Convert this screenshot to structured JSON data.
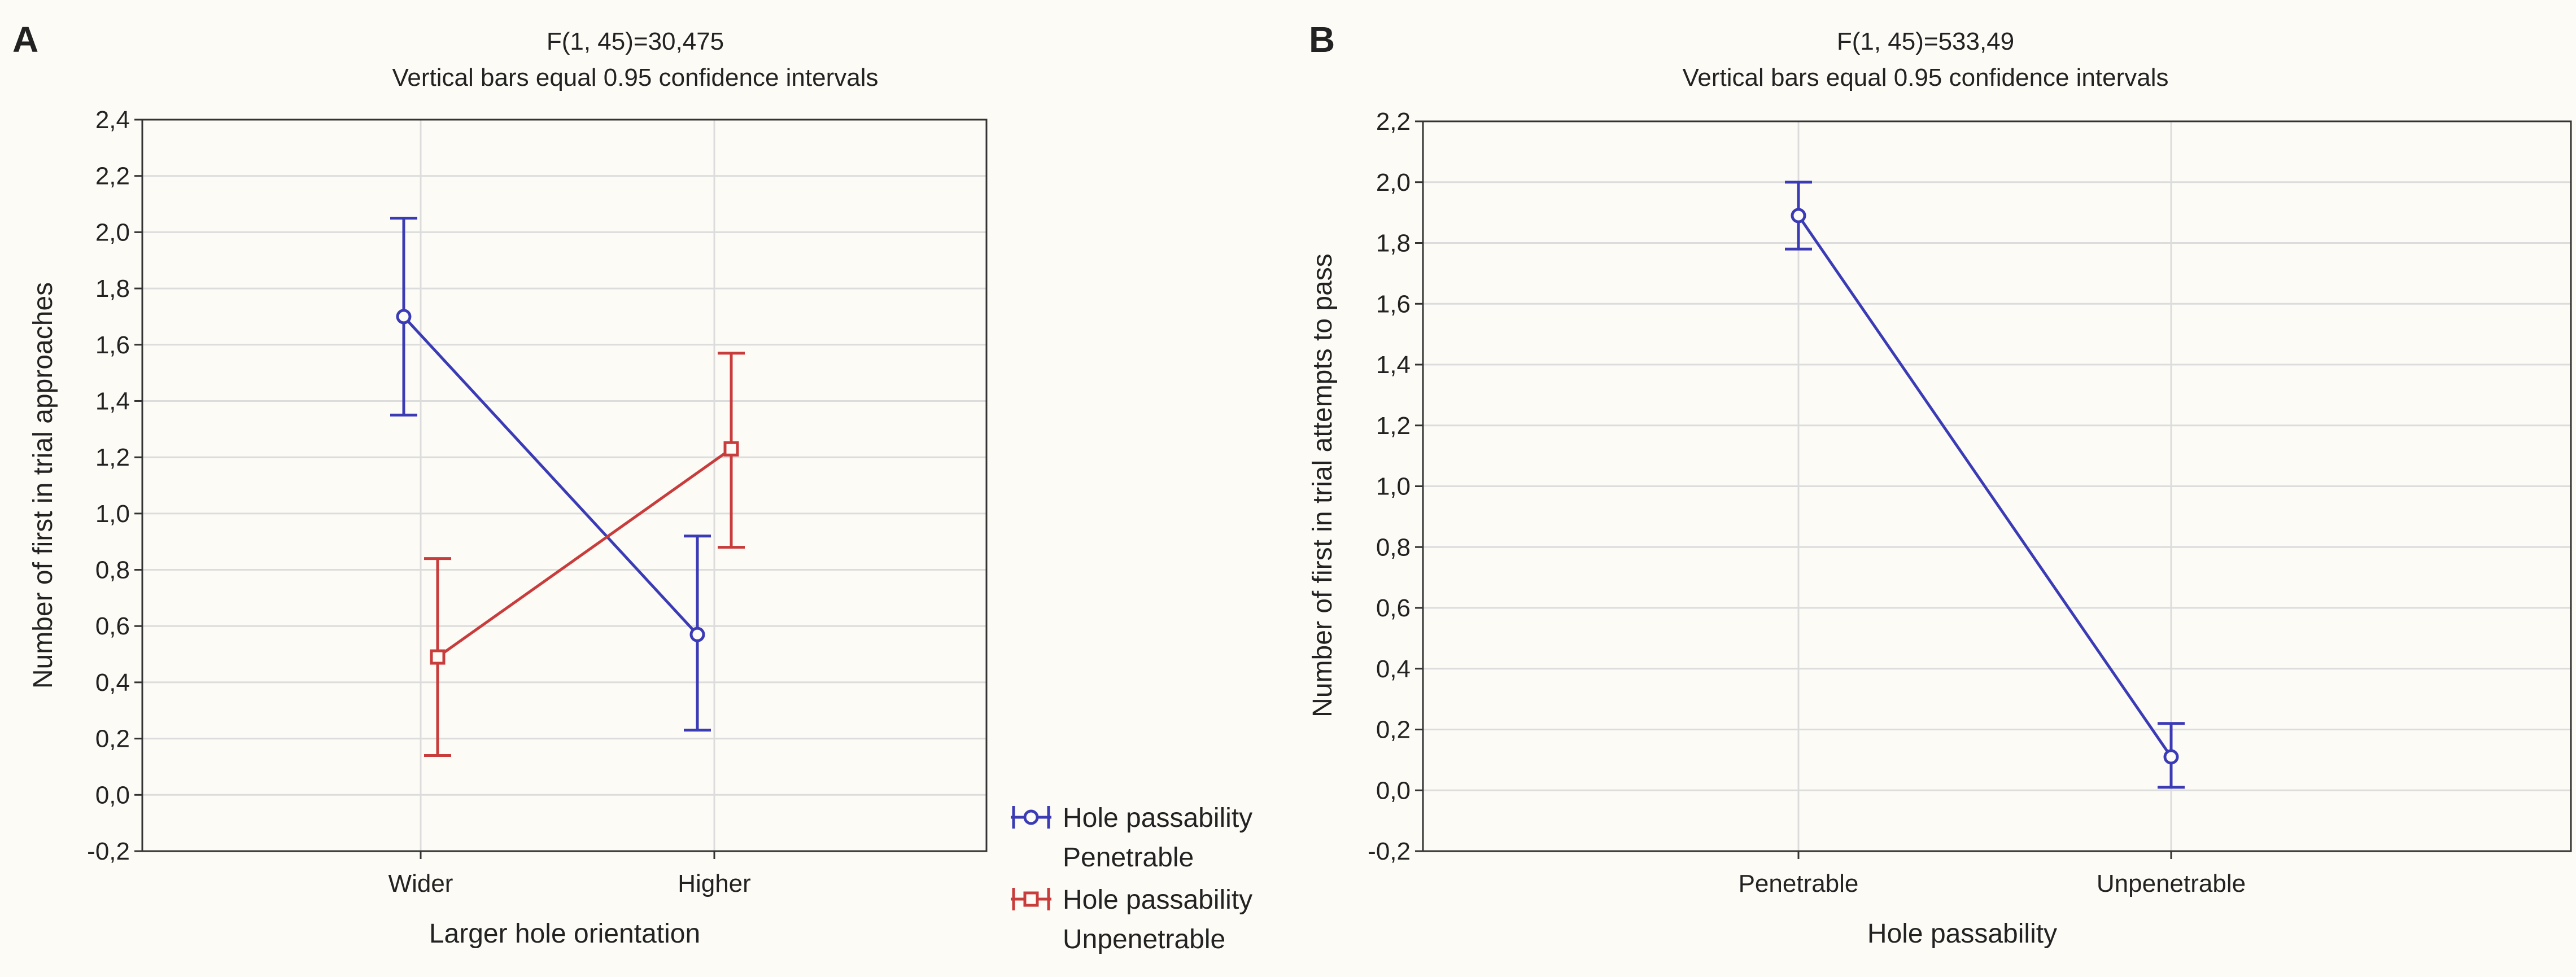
{
  "chart_data": [
    {
      "panel_label": "A",
      "type": "line",
      "title": "F(1, 45)=30,475",
      "subtitle": "Vertical bars equal 0.95 confidence intervals",
      "xlabel": "Larger hole orientation",
      "ylabel": "Number of first in trial approaches",
      "categories": [
        "Wider",
        "Higher"
      ],
      "ylim": [
        -0.2,
        2.4
      ],
      "yticks": [
        -0.2,
        0.0,
        0.2,
        0.4,
        0.6,
        0.8,
        1.0,
        1.2,
        1.4,
        1.6,
        1.8,
        2.0,
        2.2,
        2.4
      ],
      "ytick_labels": [
        "-0,2",
        "0,0",
        "0,2",
        "0,4",
        "0,6",
        "0,8",
        "1,0",
        "1,2",
        "1,4",
        "1,6",
        "1,8",
        "2,0",
        "2,2",
        "2,4"
      ],
      "grid": true,
      "legend_position": "bottom-right outside",
      "series": [
        {
          "name": "Hole passability",
          "level": "Penetrable",
          "color": "#3b3bb5",
          "marker": "circle",
          "values": [
            1.7,
            0.57
          ],
          "ci_low": [
            1.35,
            0.23
          ],
          "ci_high": [
            2.05,
            0.92
          ]
        },
        {
          "name": "Hole passability",
          "level": "Unpenetrable",
          "color": "#c83c3c",
          "marker": "square",
          "values": [
            0.49,
            1.23
          ],
          "ci_low": [
            0.14,
            0.88
          ],
          "ci_high": [
            0.84,
            1.57
          ]
        }
      ]
    },
    {
      "panel_label": "B",
      "type": "line",
      "title": "F(1, 45)=533,49",
      "subtitle": "Vertical bars equal 0.95 confidence intervals",
      "xlabel": "Hole passability",
      "ylabel": "Number of first in trial attempts to pass",
      "categories": [
        "Penetrable",
        "Unpenetrable"
      ],
      "ylim": [
        -0.2,
        2.2
      ],
      "yticks": [
        -0.2,
        0.0,
        0.2,
        0.4,
        0.6,
        0.8,
        1.0,
        1.2,
        1.4,
        1.6,
        1.8,
        2.0,
        2.2
      ],
      "ytick_labels": [
        "-0,2",
        "0,0",
        "0,2",
        "0,4",
        "0,6",
        "0,8",
        "1,0",
        "1,2",
        "1,4",
        "1,6",
        "1,8",
        "2,0",
        "2,2"
      ],
      "grid": true,
      "series": [
        {
          "name": "Hole passability",
          "color": "#3b3bb5",
          "marker": "circle",
          "values": [
            1.89,
            0.11
          ],
          "ci_low": [
            1.78,
            0.01
          ],
          "ci_high": [
            2.0,
            0.22
          ]
        }
      ]
    }
  ]
}
